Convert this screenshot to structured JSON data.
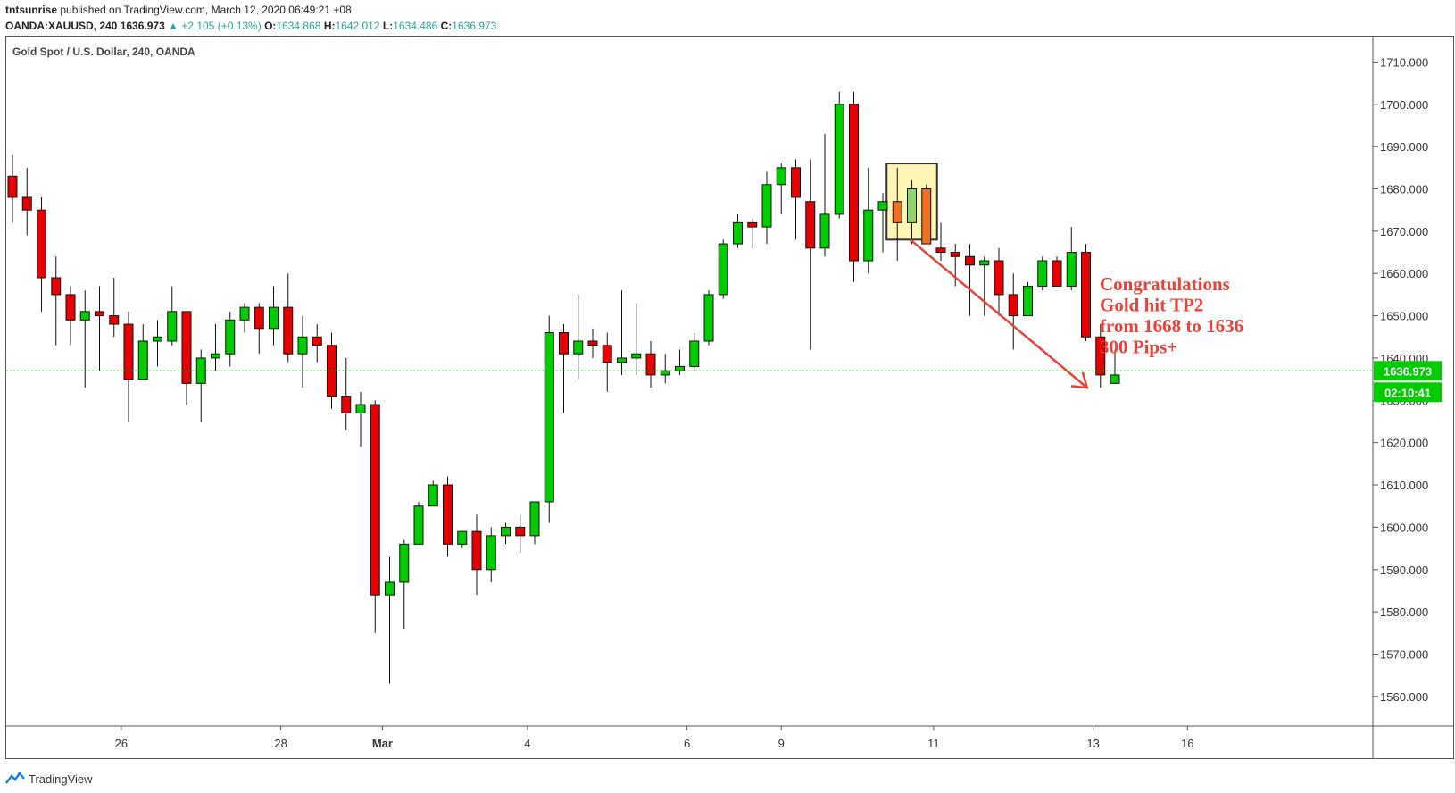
{
  "header": {
    "author": "tntsunrise",
    "published": " published on TradingView.com, March 12, 2020 06:49:21 +08",
    "symbol": "OANDA:XAUUSD, 240",
    "price": "1636.973",
    "change": "▲ +2.105 (+0.13%)",
    "o_label": "O:",
    "o": "1634.868",
    "h_label": "H:",
    "h": "1642.012",
    "l_label": "L:",
    "l": "1634.486",
    "c_label": "C:",
    "c": "1636.973"
  },
  "footer": {
    "brand": "TradingView"
  },
  "colors": {
    "up": "#00cc00",
    "down": "#e60000",
    "highlight_up": "#8fd66a",
    "highlight_down": "#f07020",
    "arrow": "#e8433a",
    "price_line": "#00c000"
  },
  "chart_data": {
    "type": "candlestick",
    "title": "Gold Spot / U.S. Dollar, 240, OANDA",
    "y_ticks": [
      "1560.000",
      "1570.000",
      "1580.000",
      "1590.000",
      "1600.000",
      "1610.000",
      "1620.000",
      "1630.000",
      "1640.000",
      "1650.000",
      "1660.000",
      "1670.000",
      "1680.000",
      "1690.000",
      "1700.000",
      "1710.000"
    ],
    "ylim": [
      1553,
      1716
    ],
    "x_ticks": [
      {
        "label": "26",
        "index": 7.5
      },
      {
        "label": "28",
        "index": 18.5
      },
      {
        "label": "Mar",
        "index": 25.5
      },
      {
        "label": "4",
        "index": 35.5
      },
      {
        "label": "6",
        "index": 46.5
      },
      {
        "label": "9",
        "index": 53
      },
      {
        "label": "11",
        "index": 63.5
      },
      {
        "label": "13",
        "index": 74.5
      },
      {
        "label": "16",
        "index": 81
      }
    ],
    "candles": [
      [
        1683,
        1688,
        1672,
        1678
      ],
      [
        1678,
        1685,
        1669,
        1675
      ],
      [
        1675,
        1678,
        1651,
        1659
      ],
      [
        1659,
        1664,
        1643,
        1655
      ],
      [
        1655,
        1657,
        1643,
        1649
      ],
      [
        1649,
        1656,
        1633,
        1651
      ],
      [
        1651,
        1657,
        1637,
        1650
      ],
      [
        1650,
        1659,
        1645,
        1648
      ],
      [
        1648,
        1651,
        1625,
        1635
      ],
      [
        1635,
        1648,
        1635,
        1644
      ],
      [
        1644,
        1649,
        1638,
        1645
      ],
      [
        1644,
        1657,
        1643,
        1651
      ],
      [
        1651,
        1651,
        1629,
        1634
      ],
      [
        1634,
        1642,
        1625,
        1640
      ],
      [
        1640,
        1648,
        1637,
        1641
      ],
      [
        1641,
        1651,
        1638,
        1649
      ],
      [
        1649,
        1653,
        1646,
        1652
      ],
      [
        1652,
        1653,
        1641,
        1647
      ],
      [
        1647,
        1657,
        1643,
        1652
      ],
      [
        1652,
        1660,
        1639,
        1641
      ],
      [
        1641,
        1650,
        1633,
        1645
      ],
      [
        1645,
        1648,
        1639,
        1643
      ],
      [
        1643,
        1646,
        1628,
        1631
      ],
      [
        1631,
        1640,
        1623,
        1627
      ],
      [
        1627,
        1632,
        1619,
        1629
      ],
      [
        1629,
        1630,
        1575,
        1584
      ],
      [
        1584,
        1593,
        1563,
        1587
      ],
      [
        1587,
        1597,
        1576,
        1596
      ],
      [
        1596,
        1606,
        1596,
        1605
      ],
      [
        1605,
        1611,
        1605,
        1610
      ],
      [
        1610,
        1612,
        1593,
        1596
      ],
      [
        1596,
        1599,
        1595,
        1599
      ],
      [
        1599,
        1603,
        1584,
        1590
      ],
      [
        1590,
        1600,
        1587,
        1598
      ],
      [
        1598,
        1601,
        1596,
        1600
      ],
      [
        1600,
        1603,
        1594,
        1598
      ],
      [
        1598,
        1606,
        1596,
        1606
      ],
      [
        1606,
        1650,
        1601,
        1646
      ],
      [
        1646,
        1648,
        1627,
        1641
      ],
      [
        1641,
        1655,
        1635,
        1644
      ],
      [
        1644,
        1647,
        1640,
        1643
      ],
      [
        1643,
        1646,
        1632,
        1639
      ],
      [
        1639,
        1656,
        1636,
        1640
      ],
      [
        1640,
        1653,
        1636,
        1641
      ],
      [
        1641,
        1644,
        1633,
        1636
      ],
      [
        1636,
        1641,
        1634,
        1637
      ],
      [
        1637,
        1642,
        1636,
        1638
      ],
      [
        1638,
        1646,
        1637,
        1644
      ],
      [
        1644,
        1656,
        1643,
        1655
      ],
      [
        1655,
        1668,
        1654,
        1667
      ],
      [
        1667,
        1674,
        1666,
        1672
      ],
      [
        1672,
        1673,
        1666,
        1671
      ],
      [
        1671,
        1684,
        1667,
        1681
      ],
      [
        1681,
        1686,
        1674,
        1685
      ],
      [
        1685,
        1687,
        1668,
        1678
      ],
      [
        1677,
        1687,
        1642,
        1666
      ],
      [
        1666,
        1693,
        1664,
        1674
      ],
      [
        1674,
        1703,
        1673,
        1700
      ],
      [
        1700,
        1703,
        1658,
        1663
      ],
      [
        1663,
        1685,
        1660,
        1675
      ],
      [
        1675,
        1679,
        1665,
        1677
      ],
      [
        1677,
        1685,
        1663,
        1672,
        "hl"
      ],
      [
        1672,
        1682,
        1667,
        1680,
        "hl"
      ],
      [
        1680,
        1681,
        1667,
        1667,
        "hl"
      ],
      [
        1666,
        1672,
        1663,
        1665
      ],
      [
        1665,
        1667,
        1657,
        1664
      ],
      [
        1664,
        1667,
        1650,
        1662
      ],
      [
        1662,
        1664,
        1650,
        1663
      ],
      [
        1663,
        1666,
        1650,
        1655
      ],
      [
        1655,
        1660,
        1642,
        1650
      ],
      [
        1650,
        1658,
        1650,
        1657
      ],
      [
        1657,
        1664,
        1656,
        1663
      ],
      [
        1663,
        1664,
        1657,
        1657
      ],
      [
        1657,
        1671,
        1656,
        1665
      ],
      [
        1665,
        1667,
        1644,
        1645
      ],
      [
        1645,
        1648,
        1633,
        1636
      ],
      [
        1634,
        1642,
        1634,
        1636
      ]
    ],
    "last_price_label": "1636.973",
    "countdown_label": "02:10:41",
    "annotation_lines": [
      "Congratulations",
      "Gold hit TP2",
      "from 1668 to 1636",
      "300 Pips+"
    ]
  }
}
